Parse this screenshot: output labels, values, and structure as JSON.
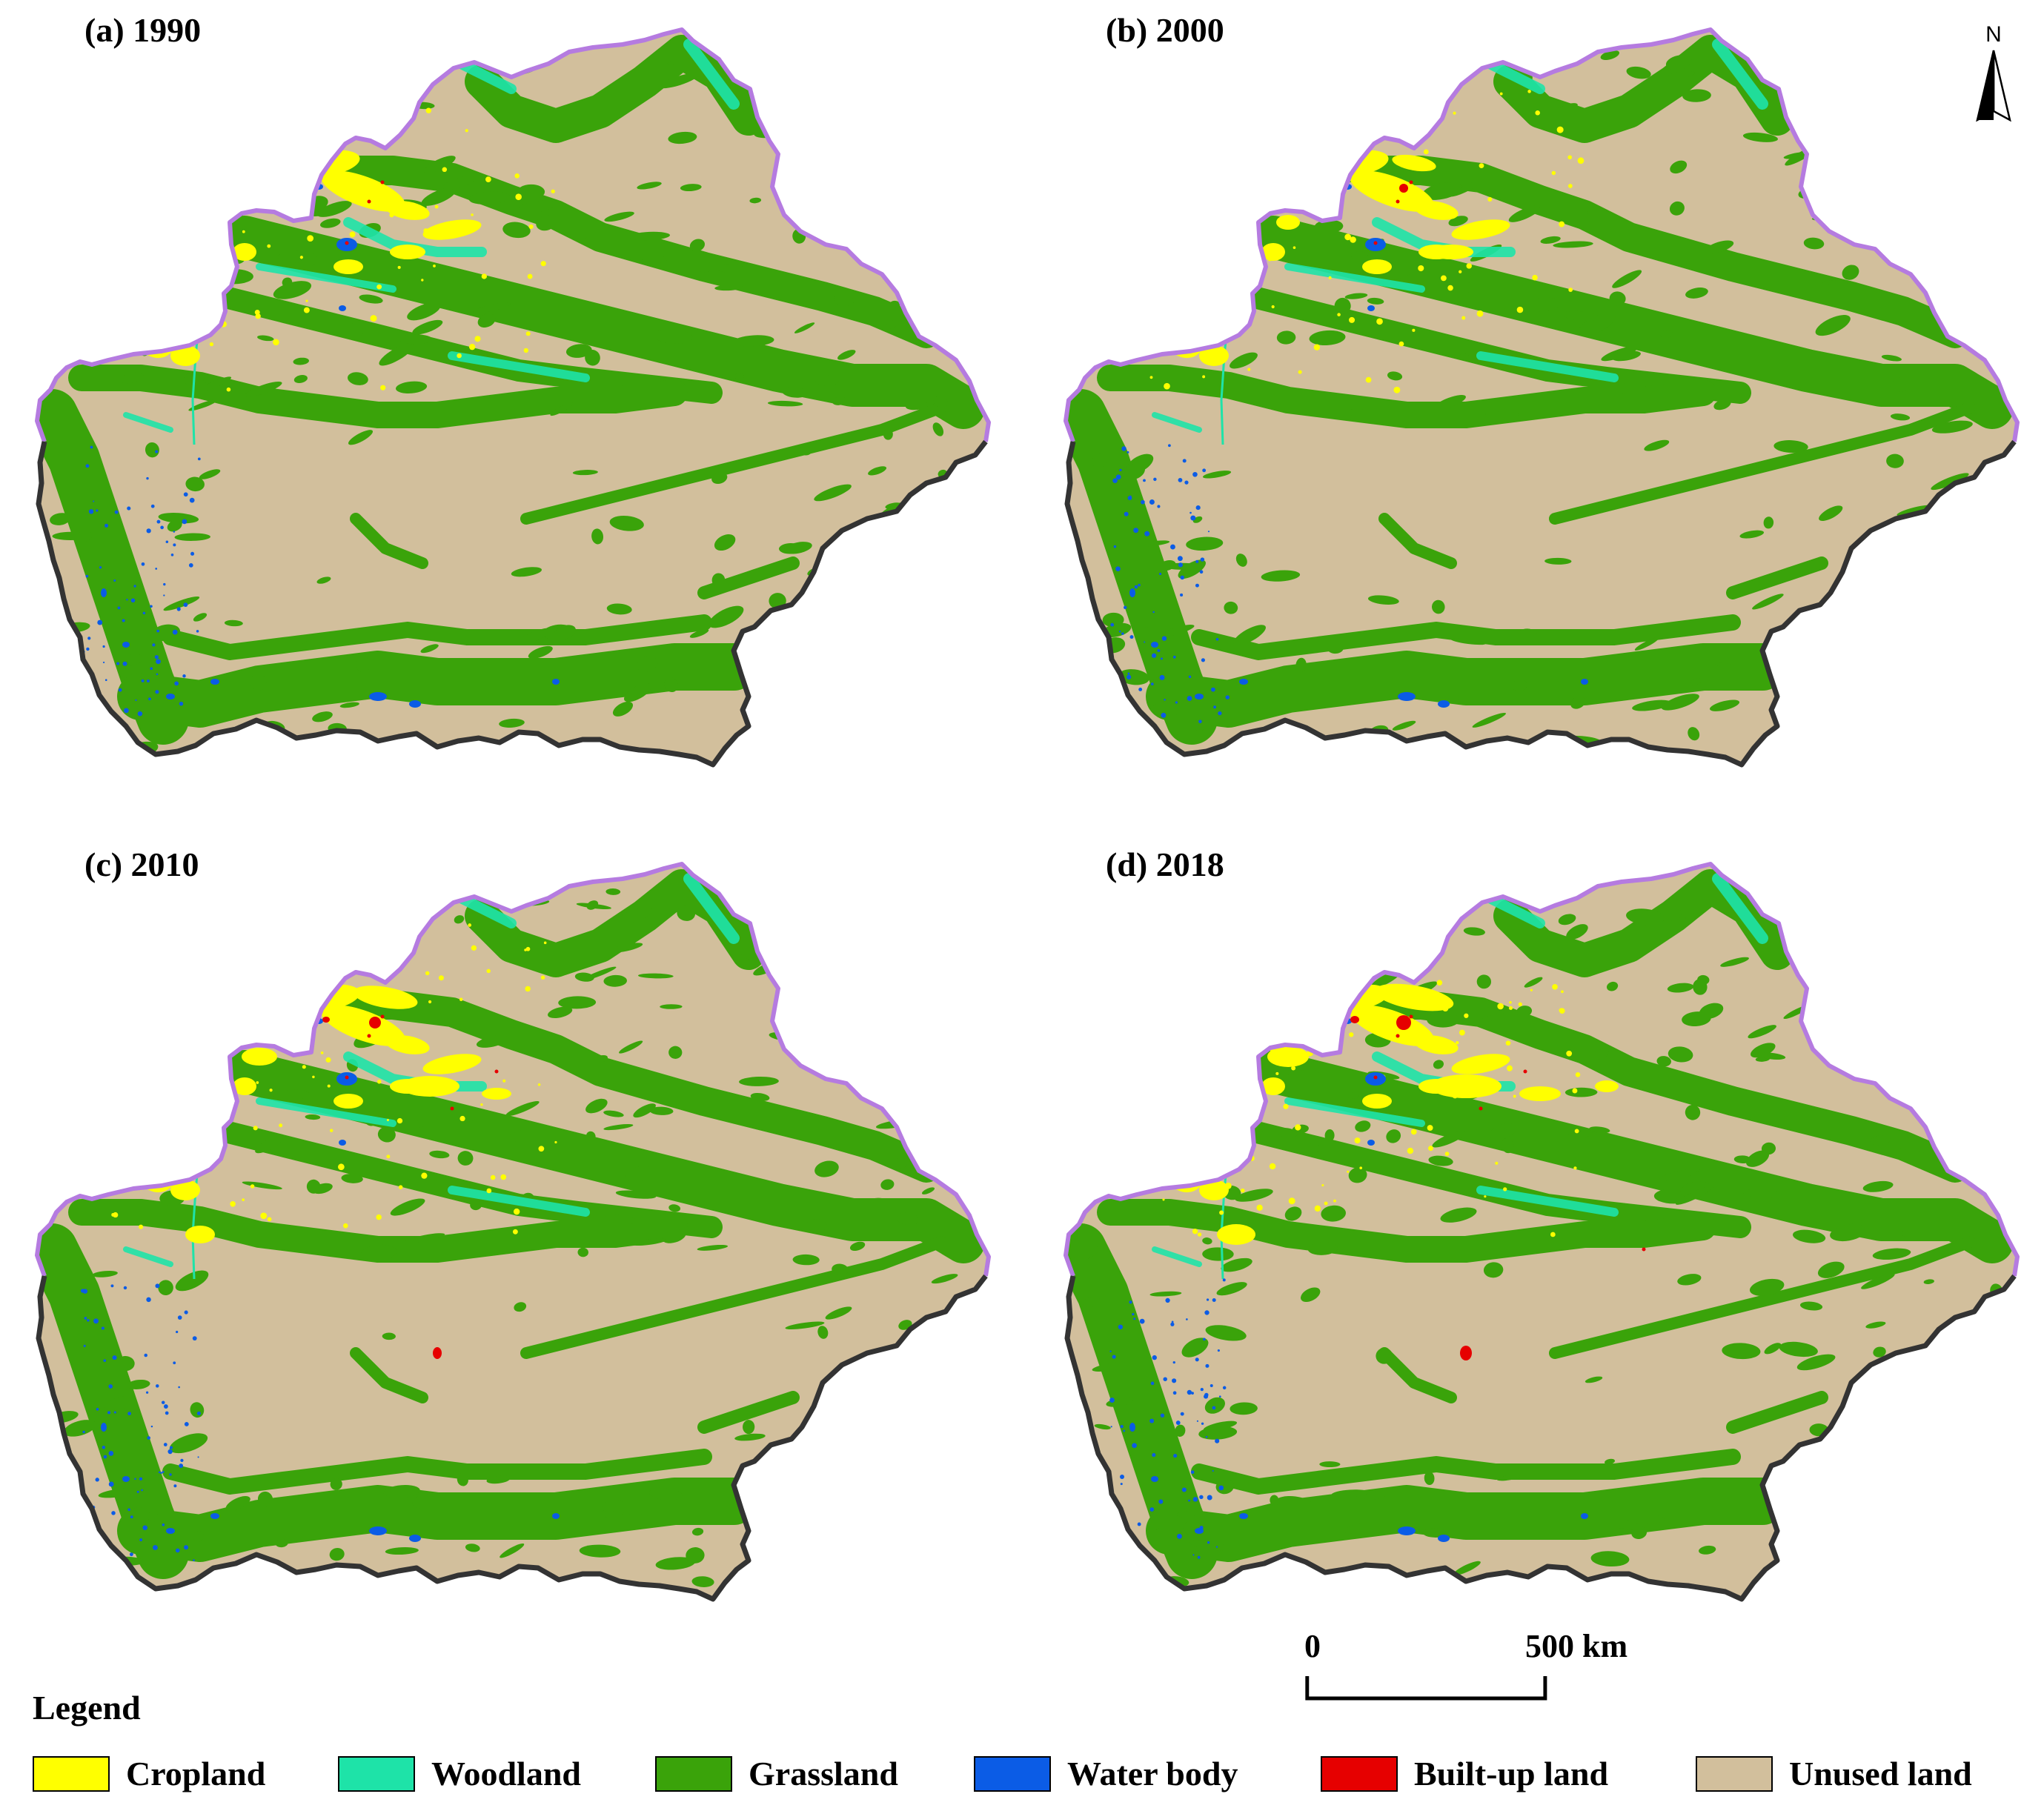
{
  "panels": [
    {
      "title": "(a) 1990"
    },
    {
      "title": "(b) 2000"
    },
    {
      "title": "(c) 2010"
    },
    {
      "title": "(d) 2018"
    }
  ],
  "north_arrow": {
    "label": "N"
  },
  "scale_bar": {
    "start_label": "0",
    "end_label": "500 km"
  },
  "legend": {
    "title": "Legend",
    "items": [
      {
        "label": "Cropland",
        "color": "#ffff00"
      },
      {
        "label": "Woodland",
        "color": "#1ee3a8"
      },
      {
        "label": "Grassland",
        "color": "#3aa30a"
      },
      {
        "label": "Water body",
        "color": "#0b5ce6"
      },
      {
        "label": "Built-up land",
        "color": "#e60000"
      },
      {
        "label": "Unused land",
        "color": "#d2bf9c"
      }
    ]
  },
  "colors": {
    "boundary_north": "#b57be0",
    "boundary_south": "#333333"
  }
}
